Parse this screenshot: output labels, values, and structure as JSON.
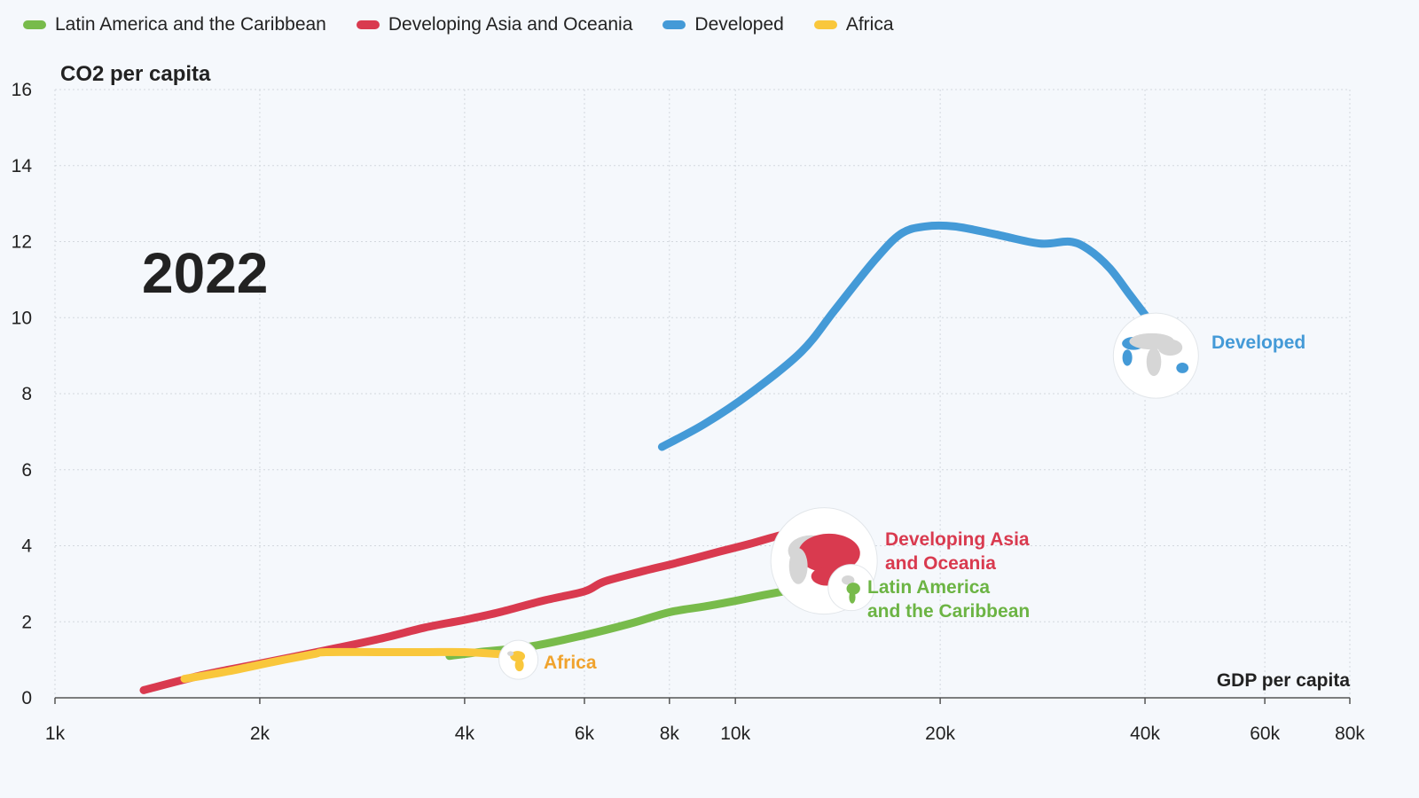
{
  "chart_data": {
    "type": "line",
    "year_label": "2022",
    "ylabel": "CO2 per capita",
    "xlabel": "GDP per capita",
    "x_scale": "log",
    "xlim": [
      1000,
      80000
    ],
    "ylim": [
      0,
      16
    ],
    "x_ticks": [
      1000,
      2000,
      4000,
      6000,
      8000,
      10000,
      20000,
      40000,
      60000,
      80000
    ],
    "x_tick_labels": [
      "1k",
      "2k",
      "4k",
      "6k",
      "8k",
      "10k",
      "20k",
      "40k",
      "60k",
      "80k"
    ],
    "y_ticks": [
      0,
      2,
      4,
      6,
      8,
      10,
      12,
      14,
      16
    ],
    "y_tick_labels": [
      "0",
      "2",
      "4",
      "6",
      "8",
      "10",
      "12",
      "14",
      "16"
    ],
    "grid": true,
    "legend_position": "top-left",
    "series": [
      {
        "name": "Latin America and the Caribbean",
        "end_label": [
          "Latin America",
          "and the Caribbean"
        ],
        "color": "#78bb4b",
        "label_color": "#6cb444",
        "icon": "globe-latin-america-icon",
        "x": [
          3800,
          4200,
          5000,
          6000,
          7000,
          8000,
          9000,
          10000,
          11000,
          12200
        ],
        "y": [
          1.1,
          1.2,
          1.35,
          1.65,
          1.95,
          2.25,
          2.4,
          2.55,
          2.7,
          2.85
        ]
      },
      {
        "name": "Developing Asia and Oceania",
        "end_label": [
          "Developing Asia",
          "and Oceania"
        ],
        "color": "#d93a4f",
        "label_color": "#d93a4f",
        "icon": "globe-asia-icon",
        "x": [
          1350,
          1650,
          2000,
          2500,
          3000,
          3500,
          4000,
          4500,
          5200,
          6000,
          6400,
          7200,
          8200,
          9500,
          10500,
          11500,
          12500
        ],
        "y": [
          0.2,
          0.6,
          0.9,
          1.25,
          1.55,
          1.85,
          2.05,
          2.25,
          2.55,
          2.8,
          3.05,
          3.3,
          3.55,
          3.85,
          4.05,
          4.25,
          4.4
        ]
      },
      {
        "name": "Developed",
        "end_label": [
          "Developed"
        ],
        "color": "#449ad7",
        "label_color": "#449ad7",
        "icon": "globe-developed-icon",
        "x": [
          7800,
          9000,
          10500,
          12500,
          14000,
          16000,
          17500,
          19000,
          21000,
          24000,
          28000,
          31000,
          33000,
          35500,
          38000,
          40500
        ],
        "y": [
          6.6,
          7.2,
          8.0,
          9.1,
          10.2,
          11.5,
          12.2,
          12.4,
          12.4,
          12.2,
          11.95,
          12.0,
          11.8,
          11.3,
          10.6,
          9.95
        ]
      },
      {
        "name": "Africa",
        "end_label": [
          "Africa"
        ],
        "color": "#f9c73c",
        "label_color": "#f0a32d",
        "icon": "globe-africa-icon",
        "x": [
          1550,
          1800,
          2100,
          2400,
          2500,
          3000,
          3500,
          4000,
          4500,
          5000
        ],
        "y": [
          0.5,
          0.7,
          0.95,
          1.15,
          1.2,
          1.2,
          1.2,
          1.2,
          1.15,
          1.1
        ]
      }
    ]
  }
}
